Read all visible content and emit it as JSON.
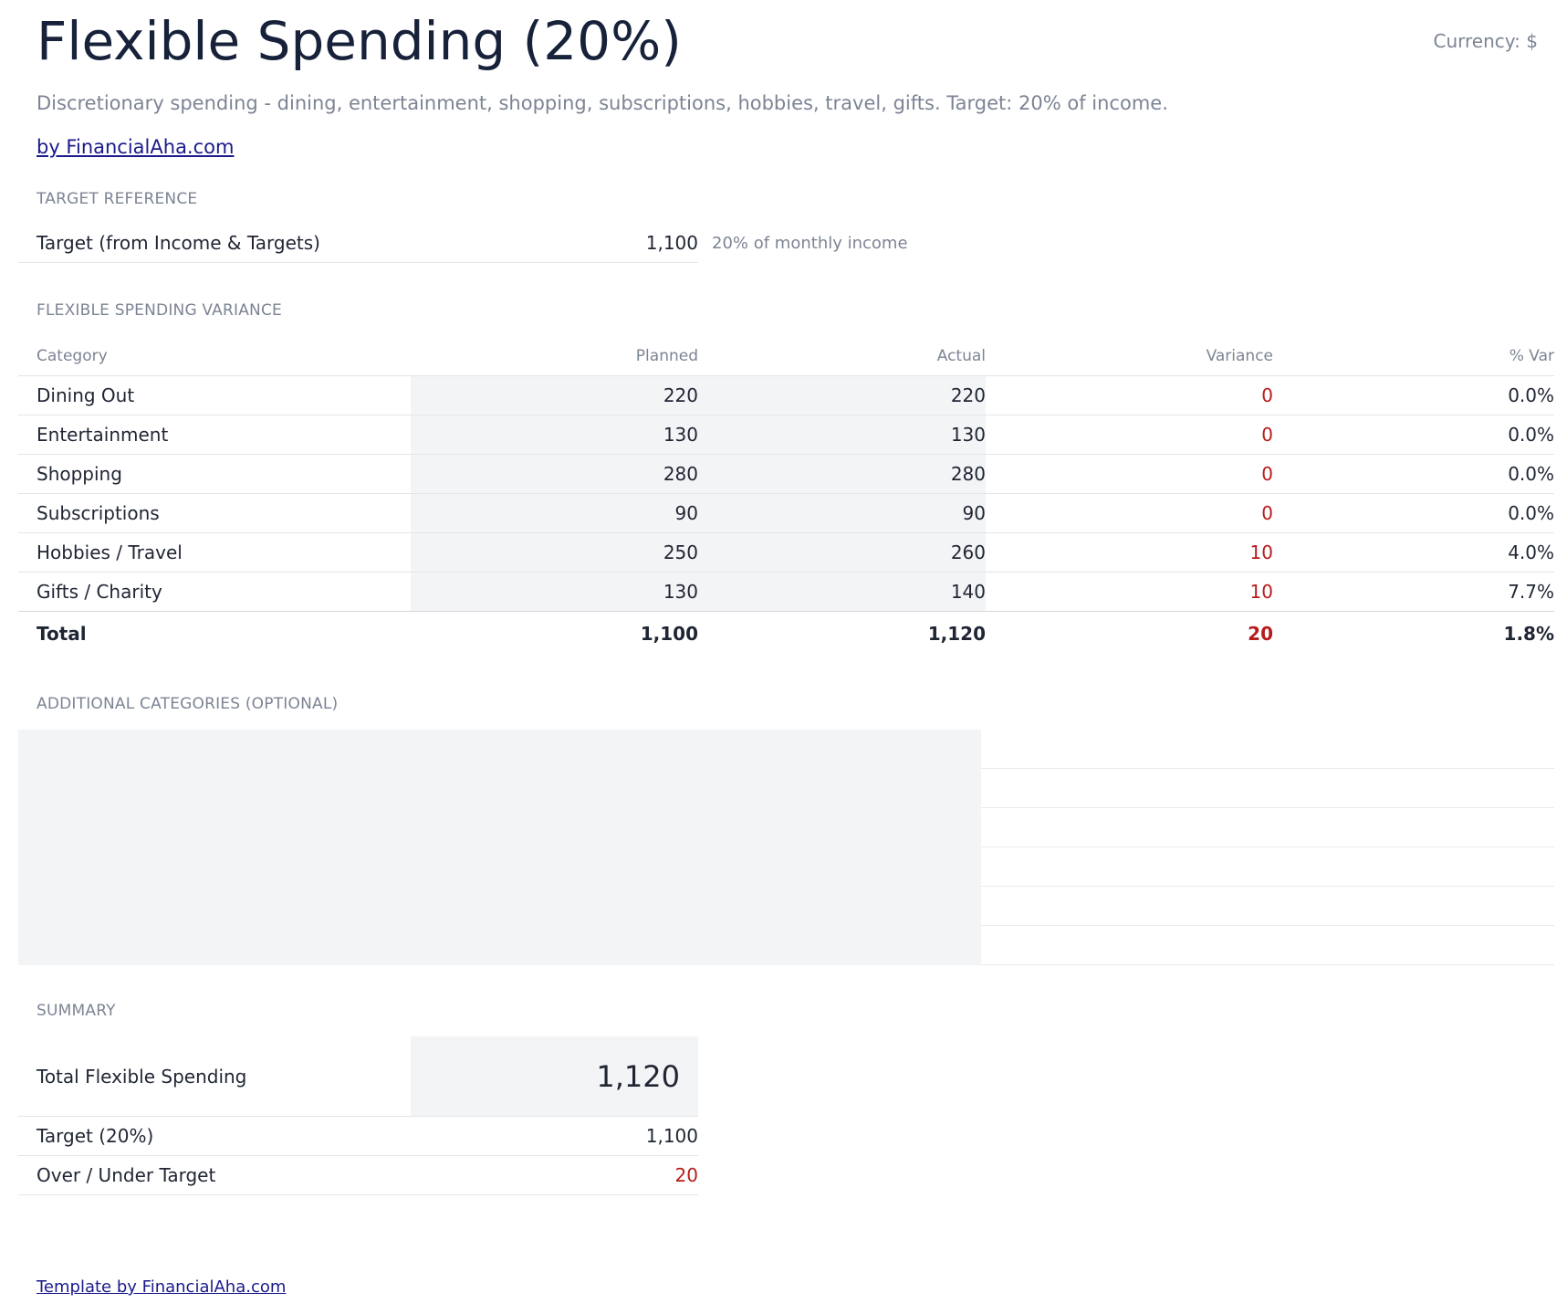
{
  "header": {
    "title": "Flexible Spending (20%)",
    "currency": "Currency: $",
    "description": "Discretionary spending - dining, entertainment, shopping, subscriptions, hobbies, travel, gifts. Target: 20% of income.",
    "by_link": "by FinancialAha.com"
  },
  "target_reference": {
    "label": "TARGET REFERENCE",
    "row_label": "Target (from Income & Targets)",
    "value": "1,100",
    "note": "20% of monthly income"
  },
  "variance": {
    "label": "FLEXIBLE SPENDING VARIANCE",
    "columns": [
      "Category",
      "Planned",
      "Actual",
      "Variance",
      "% Var"
    ],
    "rows": [
      {
        "category": "Dining Out",
        "planned": "220",
        "actual": "220",
        "variance": "0",
        "pct": "0.0%"
      },
      {
        "category": "Entertainment",
        "planned": "130",
        "actual": "130",
        "variance": "0",
        "pct": "0.0%"
      },
      {
        "category": "Shopping",
        "planned": "280",
        "actual": "280",
        "variance": "0",
        "pct": "0.0%"
      },
      {
        "category": "Subscriptions",
        "planned": "90",
        "actual": "90",
        "variance": "0",
        "pct": "0.0%"
      },
      {
        "category": "Hobbies / Travel",
        "planned": "250",
        "actual": "260",
        "variance": "10",
        "pct": "4.0%"
      },
      {
        "category": "Gifts / Charity",
        "planned": "130",
        "actual": "140",
        "variance": "10",
        "pct": "7.7%"
      }
    ],
    "total": {
      "category": "Total",
      "planned": "1,100",
      "actual": "1,120",
      "variance": "20",
      "pct": "1.8%"
    }
  },
  "additional": {
    "label": "ADDITIONAL CATEGORIES (OPTIONAL)"
  },
  "summary": {
    "label": "SUMMARY",
    "total_label": "Total Flexible Spending",
    "total_value": "1,120",
    "target_label": "Target (20%)",
    "target_value": "1,100",
    "over_label": "Over / Under Target",
    "over_value": "20"
  },
  "footer": {
    "link": "Template by FinancialAha.com"
  },
  "colors": {
    "title": "#17223a",
    "muted": "#7c8494",
    "link": "#1a1a8c",
    "negative": "#b71c1c",
    "shade": "#f3f4f6"
  }
}
